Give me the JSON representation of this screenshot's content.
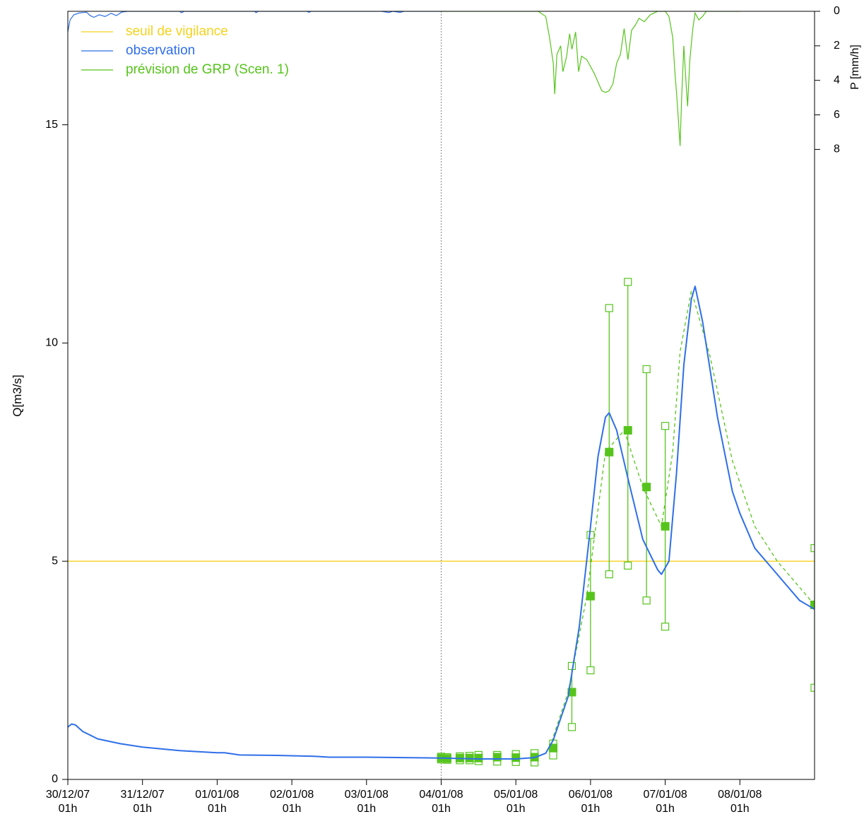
{
  "chart_data": {
    "type": "line",
    "title": "",
    "ylabel": "Q[m3/s]",
    "y2label": "P [mm/h]",
    "xlabel": "",
    "xlim_days": [
      0,
      10.0
    ],
    "ylim": [
      0,
      17.6
    ],
    "y2lim": [
      0,
      8.9
    ],
    "y2_inverted": true,
    "y_ticks": [
      0,
      5,
      10,
      15
    ],
    "y2_ticks": [
      0,
      2,
      4,
      6,
      8
    ],
    "x_ticks": [
      {
        "day": 0,
        "date": "30/12/07",
        "hour": "01h"
      },
      {
        "day": 1,
        "date": "31/12/07",
        "hour": "01h"
      },
      {
        "day": 2,
        "date": "01/01/08",
        "hour": "01h"
      },
      {
        "day": 3,
        "date": "02/01/08",
        "hour": "01h"
      },
      {
        "day": 4,
        "date": "03/01/08",
        "hour": "01h"
      },
      {
        "day": 5,
        "date": "04/01/08",
        "hour": "01h"
      },
      {
        "day": 6,
        "date": "05/01/08",
        "hour": "01h"
      },
      {
        "day": 7,
        "date": "06/01/08",
        "hour": "01h"
      },
      {
        "day": 8,
        "date": "07/01/08",
        "hour": "01h"
      },
      {
        "day": 9,
        "date": "08/01/08",
        "hour": "01h"
      }
    ],
    "forecast_start_day": 5.0,
    "threshold": {
      "name": "seuil de vigilance",
      "value": 5.0,
      "color": "#f5d21e"
    },
    "legend": {
      "position": "top-left",
      "entries": [
        {
          "label": "seuil de vigilance",
          "color": "#f5d21e"
        },
        {
          "label": "observation",
          "color": "#2f6fe8"
        },
        {
          "label": "prévision de GRP (Scen. 1)",
          "color": "#56c41c"
        }
      ]
    },
    "observation": {
      "name": "observation",
      "color": "#2f6fe8",
      "points": [
        [
          0,
          1.2
        ],
        [
          0.05,
          1.27
        ],
        [
          0.1,
          1.25
        ],
        [
          0.2,
          1.1
        ],
        [
          0.4,
          0.93
        ],
        [
          0.7,
          0.82
        ],
        [
          1.0,
          0.74
        ],
        [
          1.5,
          0.66
        ],
        [
          2.0,
          0.61
        ],
        [
          2.1,
          0.61
        ],
        [
          2.3,
          0.56
        ],
        [
          2.8,
          0.55
        ],
        [
          3.3,
          0.53
        ],
        [
          3.5,
          0.51
        ],
        [
          4.0,
          0.51
        ],
        [
          4.5,
          0.5
        ],
        [
          5.0,
          0.49
        ],
        [
          5.5,
          0.47
        ],
        [
          6.0,
          0.47
        ],
        [
          6.25,
          0.5
        ],
        [
          6.4,
          0.6
        ],
        [
          6.5,
          0.9
        ],
        [
          6.7,
          1.9
        ],
        [
          6.85,
          3.5
        ],
        [
          7.0,
          5.8
        ],
        [
          7.1,
          7.4
        ],
        [
          7.2,
          8.3
        ],
        [
          7.25,
          8.4
        ],
        [
          7.35,
          8.0
        ],
        [
          7.5,
          6.9
        ],
        [
          7.7,
          5.5
        ],
        [
          7.9,
          4.8
        ],
        [
          7.95,
          4.7
        ],
        [
          8.05,
          5.0
        ],
        [
          8.15,
          7.0
        ],
        [
          8.25,
          9.5
        ],
        [
          8.35,
          11.0
        ],
        [
          8.4,
          11.3
        ],
        [
          8.5,
          10.5
        ],
        [
          8.7,
          8.3
        ],
        [
          8.9,
          6.6
        ],
        [
          9.0,
          6.1
        ],
        [
          9.2,
          5.3
        ],
        [
          9.4,
          4.9
        ],
        [
          9.6,
          4.5
        ],
        [
          9.8,
          4.1
        ],
        [
          10.0,
          3.9
        ]
      ]
    },
    "forecast_median_dashed": {
      "name": "prévision de GRP (Scen. 1)",
      "color": "#56c41c",
      "points": [
        [
          6.45,
          0.72
        ],
        [
          6.7,
          2.0
        ],
        [
          6.95,
          4.2
        ],
        [
          7.2,
          7.5
        ],
        [
          7.45,
          8.0
        ],
        [
          7.7,
          6.7
        ],
        [
          7.95,
          5.8
        ],
        [
          8.1,
          7.5
        ],
        [
          8.2,
          9.8
        ],
        [
          8.35,
          11.2
        ],
        [
          8.6,
          9.7
        ],
        [
          8.9,
          7.3
        ],
        [
          9.2,
          5.8
        ],
        [
          9.5,
          5.0
        ],
        [
          9.8,
          4.4
        ],
        [
          10.0,
          4.0
        ]
      ]
    },
    "forecasts": [
      {
        "day": 5.0,
        "median": 0.49,
        "low": 0.46,
        "high": 0.52
      },
      {
        "day": 5.08,
        "median": 0.48,
        "low": 0.45,
        "high": 0.51
      },
      {
        "day": 5.25,
        "median": 0.49,
        "low": 0.44,
        "high": 0.53
      },
      {
        "day": 5.38,
        "median": 0.49,
        "low": 0.44,
        "high": 0.54
      },
      {
        "day": 5.5,
        "median": 0.49,
        "low": 0.42,
        "high": 0.56
      },
      {
        "day": 5.75,
        "median": 0.51,
        "low": 0.41,
        "high": 0.56
      },
      {
        "day": 6.0,
        "median": 0.5,
        "low": 0.4,
        "high": 0.58
      },
      {
        "day": 6.25,
        "median": 0.51,
        "low": 0.39,
        "high": 0.6
      },
      {
        "day": 6.5,
        "median": 0.72,
        "low": 0.55,
        "high": 0.82
      },
      {
        "day": 6.75,
        "median": 2.0,
        "low": 1.2,
        "high": 2.6
      },
      {
        "day": 7.0,
        "median": 4.2,
        "low": 2.5,
        "high": 5.6
      },
      {
        "day": 7.25,
        "median": 7.5,
        "low": 4.7,
        "high": 10.8
      },
      {
        "day": 7.5,
        "median": 8.0,
        "low": 4.9,
        "high": 11.4
      },
      {
        "day": 7.75,
        "median": 6.7,
        "low": 4.1,
        "high": 9.4
      },
      {
        "day": 8.0,
        "median": 5.8,
        "low": 3.5,
        "high": 8.1
      },
      {
        "day": 10.0,
        "median": 4.0,
        "low": 2.1,
        "high": 5.3
      }
    ],
    "rain_observed": {
      "name": "observation",
      "color": "#2f6fe8",
      "points": [
        [
          0,
          1.2
        ],
        [
          0.03,
          0.5
        ],
        [
          0.08,
          0.2
        ],
        [
          0.15,
          0.1
        ],
        [
          0.25,
          0.05
        ],
        [
          0.3,
          0.25
        ],
        [
          0.35,
          0.35
        ],
        [
          0.42,
          0.2
        ],
        [
          0.5,
          0.3
        ],
        [
          0.58,
          0.12
        ],
        [
          0.65,
          0.25
        ],
        [
          0.72,
          0.05
        ],
        [
          0.8,
          0.0
        ],
        [
          1.2,
          0.0
        ],
        [
          1.5,
          0.0
        ],
        [
          1.52,
          0.08
        ],
        [
          1.56,
          0.0
        ],
        [
          1.7,
          0.0
        ],
        [
          2.0,
          0.0
        ],
        [
          2.5,
          0.0
        ],
        [
          2.52,
          0.08
        ],
        [
          2.55,
          0.0
        ],
        [
          3.2,
          0.0
        ],
        [
          3.23,
          0.06
        ],
        [
          3.26,
          0.0
        ],
        [
          3.7,
          0.0
        ],
        [
          4.2,
          0.0
        ],
        [
          4.3,
          0.07
        ],
        [
          4.35,
          0.0
        ],
        [
          4.45,
          0.06
        ],
        [
          4.5,
          0.0
        ],
        [
          5.0,
          0.0
        ]
      ]
    },
    "rain_forecast": {
      "name": "prévision de GRP (Scen. 1)",
      "color": "#56c41c",
      "points": [
        [
          5.0,
          0.0
        ],
        [
          5.5,
          0.0
        ],
        [
          6.3,
          0.0
        ],
        [
          6.4,
          0.3
        ],
        [
          6.45,
          1.5
        ],
        [
          6.5,
          3.0
        ],
        [
          6.52,
          4.8
        ],
        [
          6.55,
          2.5
        ],
        [
          6.6,
          2.0
        ],
        [
          6.63,
          3.5
        ],
        [
          6.68,
          2.6
        ],
        [
          6.72,
          1.3
        ],
        [
          6.75,
          2.2
        ],
        [
          6.8,
          1.2
        ],
        [
          6.84,
          3.5
        ],
        [
          6.88,
          2.6
        ],
        [
          6.95,
          2.8
        ],
        [
          7.0,
          3.2
        ],
        [
          7.05,
          3.6
        ],
        [
          7.15,
          4.6
        ],
        [
          7.2,
          4.7
        ],
        [
          7.25,
          4.6
        ],
        [
          7.3,
          4.2
        ],
        [
          7.35,
          3.0
        ],
        [
          7.4,
          2.5
        ],
        [
          7.45,
          1.0
        ],
        [
          7.5,
          2.8
        ],
        [
          7.55,
          1.1
        ],
        [
          7.6,
          0.8
        ],
        [
          7.65,
          0.4
        ],
        [
          7.72,
          0.6
        ],
        [
          7.8,
          0.2
        ],
        [
          7.9,
          0.0
        ],
        [
          8.0,
          0.0
        ],
        [
          8.05,
          0.3
        ],
        [
          8.1,
          1.5
        ],
        [
          8.13,
          3.5
        ],
        [
          8.16,
          5.2
        ],
        [
          8.2,
          7.8
        ],
        [
          8.22,
          5.0
        ],
        [
          8.25,
          2.0
        ],
        [
          8.28,
          4.2
        ],
        [
          8.3,
          5.5
        ],
        [
          8.33,
          2.8
        ],
        [
          8.37,
          1.0
        ],
        [
          8.4,
          0.1
        ],
        [
          8.45,
          0.5
        ],
        [
          8.5,
          0.3
        ],
        [
          8.55,
          0.0
        ],
        [
          8.7,
          0.0
        ],
        [
          9.0,
          0.0
        ]
      ]
    }
  }
}
